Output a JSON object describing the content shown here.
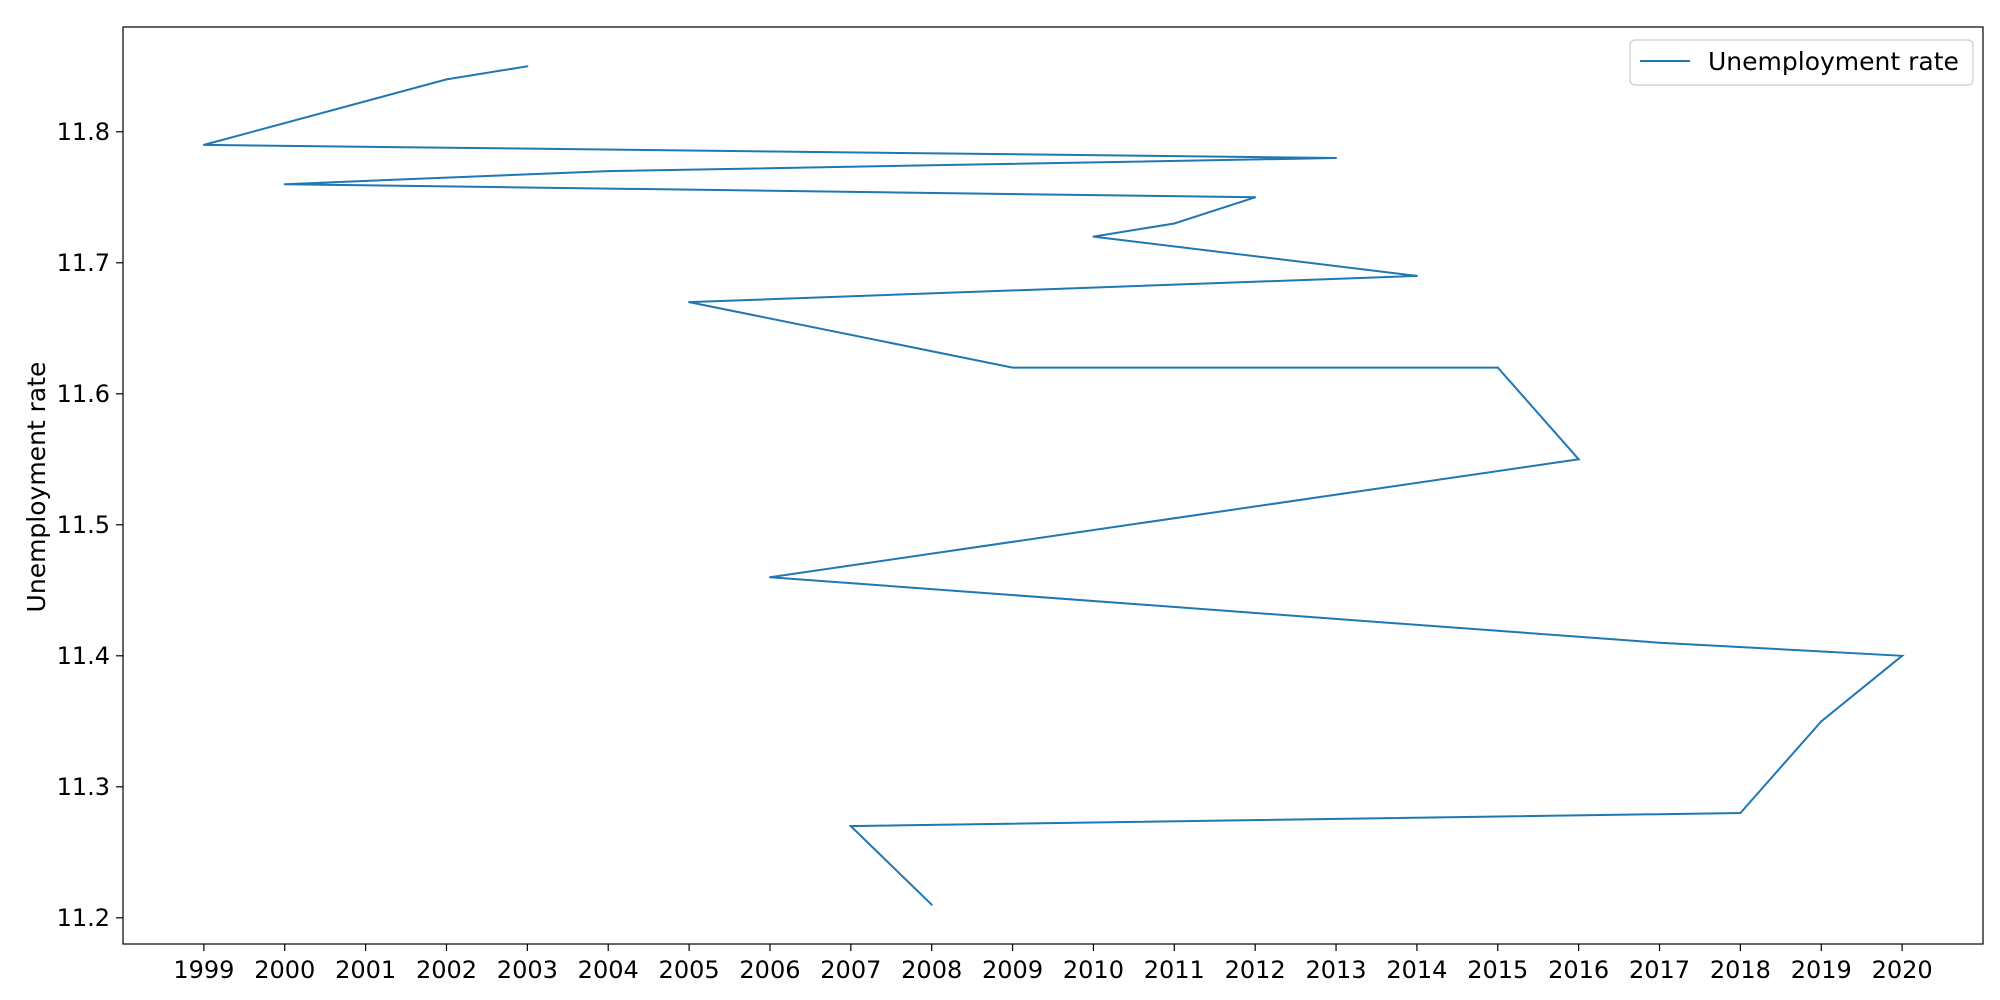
{
  "chart_data": {
    "type": "line",
    "title": "",
    "xlabel": "",
    "ylabel": "Unemployment rate",
    "xlim": [
      1998,
      2021
    ],
    "ylim": [
      11.18,
      11.88
    ],
    "x_ticks": [
      "1999",
      "2000",
      "2001",
      "2002",
      "2003",
      "2004",
      "2005",
      "2006",
      "2007",
      "2008",
      "2009",
      "2010",
      "2011",
      "2012",
      "2013",
      "2014",
      "2015",
      "2016",
      "2017",
      "2018",
      "2019",
      "2020"
    ],
    "y_ticks": [
      "11.2",
      "11.3",
      "11.4",
      "11.5",
      "11.6",
      "11.7",
      "11.8"
    ],
    "grid": false,
    "legend": {
      "position": "top-right"
    },
    "series": [
      {
        "name": "Unemployment rate",
        "color": "#1f77b4",
        "points": [
          {
            "x": 2003,
            "y": 11.85
          },
          {
            "x": 2002,
            "y": 11.84
          },
          {
            "x": 1999,
            "y": 11.79
          },
          {
            "x": 2013,
            "y": 11.78
          },
          {
            "x": 2004,
            "y": 11.77
          },
          {
            "x": 2000,
            "y": 11.76
          },
          {
            "x": 2012,
            "y": 11.75
          },
          {
            "x": 2011,
            "y": 11.73
          },
          {
            "x": 2010,
            "y": 11.72
          },
          {
            "x": 2014,
            "y": 11.69
          },
          {
            "x": 2005,
            "y": 11.67
          },
          {
            "x": 2009,
            "y": 11.62
          },
          {
            "x": 2015,
            "y": 11.62
          },
          {
            "x": 2016,
            "y": 11.55
          },
          {
            "x": 2006,
            "y": 11.46
          },
          {
            "x": 2017,
            "y": 11.41
          },
          {
            "x": 2020,
            "y": 11.4
          },
          {
            "x": 2019,
            "y": 11.35
          },
          {
            "x": 2018,
            "y": 11.28
          },
          {
            "x": 2007,
            "y": 11.27
          },
          {
            "x": 2008,
            "y": 11.21
          }
        ]
      }
    ]
  }
}
